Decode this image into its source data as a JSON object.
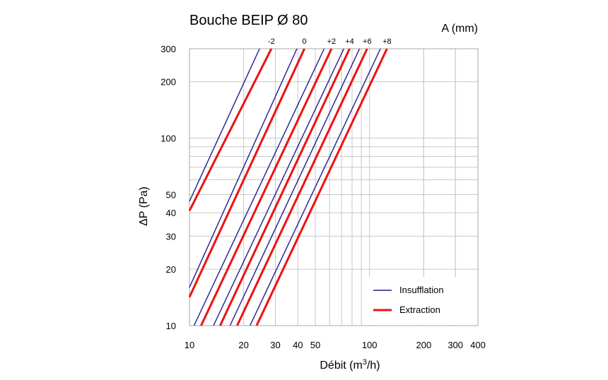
{
  "chart_data": {
    "type": "line",
    "title": "Bouche BEIP Ø 80",
    "curve_parameter_label": "A (mm)",
    "xlabel": "Débit (m³/h)",
    "xlabel_main": "Débit (m",
    "xlabel_sup": "3",
    "xlabel_end": "/h)",
    "ylabel": "ΔP (Pa)",
    "xscale": "log",
    "yscale": "log",
    "xlim": [
      10,
      400
    ],
    "ylim": [
      10,
      300
    ],
    "x_ticks": [
      10,
      20,
      30,
      40,
      50,
      100,
      200,
      300,
      400
    ],
    "x_tick_labels": [
      "10",
      "20",
      "30",
      "40",
      "50",
      "100",
      "200",
      "300",
      "400"
    ],
    "y_ticks": [
      10,
      20,
      30,
      40,
      50,
      100,
      200,
      300
    ],
    "y_tick_labels": [
      "10",
      "20",
      "30",
      "40",
      "50",
      "100",
      "200",
      "300"
    ],
    "grid": true,
    "legend_position": "bottom-right",
    "legend": [
      {
        "name": "Insufflation",
        "color": "#1f1f8a"
      },
      {
        "name": "Extraction",
        "color": "#ee1111"
      }
    ],
    "curve_labels": [
      {
        "label": "-2",
        "x_at_top": 28.5
      },
      {
        "label": "0",
        "x_at_top": 43.5
      },
      {
        "label": "+2",
        "x_at_top": 61.5
      },
      {
        "label": "+4",
        "x_at_top": 77.5
      },
      {
        "label": "+6",
        "x_at_top": 97
      },
      {
        "label": "+8",
        "x_at_top": 125
      }
    ],
    "series": [
      {
        "group": "Insufflation",
        "A": "-2",
        "color": "#1f1f8a",
        "points": [
          [
            10,
            46
          ],
          [
            24.5,
            300
          ]
        ]
      },
      {
        "group": "Extraction",
        "A": "-2",
        "color": "#ee1111",
        "points": [
          [
            10,
            41
          ],
          [
            28.5,
            300
          ]
        ]
      },
      {
        "group": "Insufflation",
        "A": "0",
        "color": "#1f1f8a",
        "points": [
          [
            10,
            16
          ],
          [
            39.5,
            300
          ]
        ]
      },
      {
        "group": "Extraction",
        "A": "0",
        "color": "#ee1111",
        "points": [
          [
            10,
            14.2
          ],
          [
            43.5,
            300
          ]
        ]
      },
      {
        "group": "Insufflation",
        "A": "+2",
        "color": "#1f1f8a",
        "points": [
          [
            10.6,
            10
          ],
          [
            56,
            300
          ]
        ]
      },
      {
        "group": "Extraction",
        "A": "+2",
        "color": "#ee1111",
        "points": [
          [
            11.6,
            10
          ],
          [
            61.5,
            300
          ]
        ]
      },
      {
        "group": "Insufflation",
        "A": "+4",
        "color": "#1f1f8a",
        "points": [
          [
            13.6,
            10
          ],
          [
            72,
            300
          ]
        ]
      },
      {
        "group": "Extraction",
        "A": "+4",
        "color": "#ee1111",
        "points": [
          [
            14.8,
            10
          ],
          [
            77.5,
            300
          ]
        ]
      },
      {
        "group": "Insufflation",
        "A": "+6",
        "color": "#1f1f8a",
        "points": [
          [
            16.8,
            10
          ],
          [
            88,
            300
          ]
        ]
      },
      {
        "group": "Extraction",
        "A": "+6",
        "color": "#ee1111",
        "points": [
          [
            18.4,
            10
          ],
          [
            97,
            300
          ]
        ]
      },
      {
        "group": "Insufflation",
        "A": "+8",
        "color": "#1f1f8a",
        "points": [
          [
            21.7,
            10
          ],
          [
            115,
            300
          ]
        ]
      },
      {
        "group": "Extraction",
        "A": "+8",
        "color": "#ee1111",
        "points": [
          [
            23.6,
            10
          ],
          [
            125,
            300
          ]
        ]
      }
    ]
  }
}
